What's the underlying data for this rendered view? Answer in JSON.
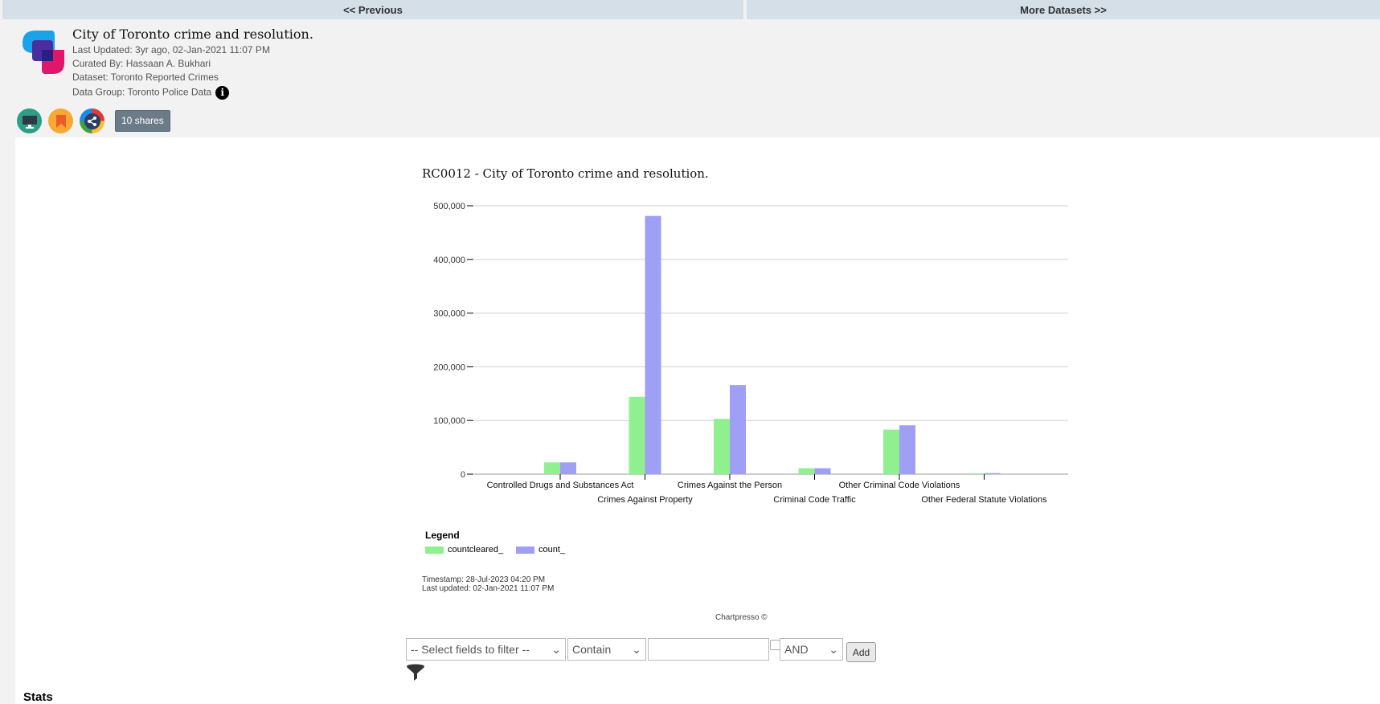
{
  "nav": {
    "previous": "<< Previous",
    "next": "More Datasets >>"
  },
  "header": {
    "title": "City of Toronto crime and resolution.",
    "last_updated": "Last Updated: 3yr ago, 02-Jan-2021 11:07 PM",
    "curated_by": "Curated By: Hassaan A. Bukhari",
    "dataset": "Dataset: Toronto Reported Crimes",
    "data_group": "Data Group: Toronto Police Data",
    "info_glyph": "i"
  },
  "actions": {
    "shares": "10 shares",
    "icons": [
      "monitor-icon",
      "bookmark-icon",
      "share-icon"
    ]
  },
  "chart_data": {
    "type": "bar",
    "title": "RC0012 - City of Toronto crime and resolution.",
    "categories": [
      "Controlled Drugs and Substances Act",
      "Crimes Against Property",
      "Crimes Against the Person",
      "Criminal Code Traffic",
      "Other Criminal Code Violations",
      "Other Federal Statute Violations"
    ],
    "series": [
      {
        "name": "countcleared_",
        "color": "#90f090",
        "values": [
          22000,
          144000,
          103000,
          11000,
          83000,
          1500
        ]
      },
      {
        "name": "count_",
        "color": "#9f9ff5",
        "values": [
          22000,
          481000,
          166000,
          11000,
          91000,
          2000
        ]
      }
    ],
    "yticks": [
      "0",
      "100,000",
      "200,000",
      "300,000",
      "400,000",
      "500,000"
    ],
    "ylim": [
      0,
      500000
    ],
    "grid": true,
    "legend_title": "Legend",
    "legend_position": "bottom-left"
  },
  "footer": {
    "timestamp": "Timestamp: 28-Jul-2023 04:20 PM",
    "last_updated": "Last updated: 02-Jan-2021 11:07 PM",
    "credit": "Chartpresso ©"
  },
  "filter": {
    "field_select": "-- Select fields to filter --",
    "op_select": "Contain",
    "value": "",
    "logic_select": "AND",
    "add": "Add"
  },
  "stats_heading": "Stats"
}
